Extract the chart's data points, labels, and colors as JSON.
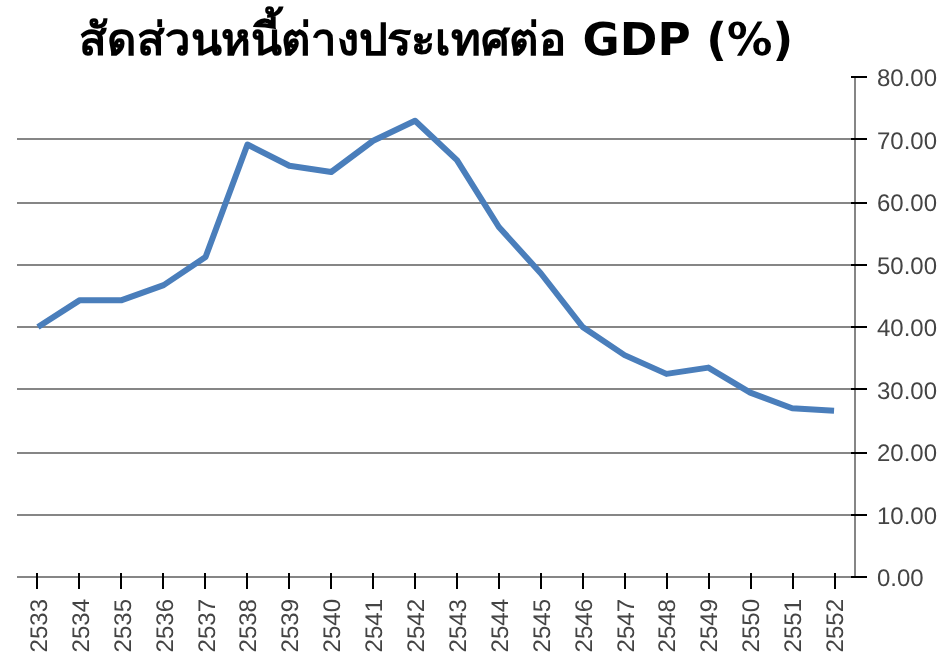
{
  "chart_data": {
    "type": "line",
    "title": "สัดส่วนหนี้ต่างประเทศต่อ GDP (%)",
    "categories": [
      "2533",
      "2534",
      "2535",
      "2536",
      "2537",
      "2538",
      "2539",
      "2540",
      "2541",
      "2542",
      "2543",
      "2544",
      "2545",
      "2546",
      "2547",
      "2548",
      "2549",
      "2550",
      "2551",
      "2552"
    ],
    "series": [
      {
        "color": "#4a7ebb",
        "values": [
          40,
          44.3,
          44.3,
          46.7,
          51.2,
          69.2,
          65.8,
          64.8,
          69.8,
          73,
          66.7,
          56,
          48.6,
          40,
          35.5,
          32.5,
          33.5,
          29.5,
          27,
          26.6
        ]
      }
    ],
    "ylim": [
      0,
      80
    ],
    "yticks": [
      {
        "value": 0,
        "label": "0.00"
      },
      {
        "value": 10,
        "label": "10.00"
      },
      {
        "value": 20,
        "label": "20.00"
      },
      {
        "value": 30,
        "label": "30.00"
      },
      {
        "value": 40,
        "label": "40.00"
      },
      {
        "value": 50,
        "label": "50.00"
      },
      {
        "value": 60,
        "label": "60.00"
      },
      {
        "value": 70,
        "label": "70.00"
      },
      {
        "value": 80,
        "label": "80.00"
      }
    ],
    "grid": "y",
    "marker": "none",
    "line_style": "solid"
  }
}
